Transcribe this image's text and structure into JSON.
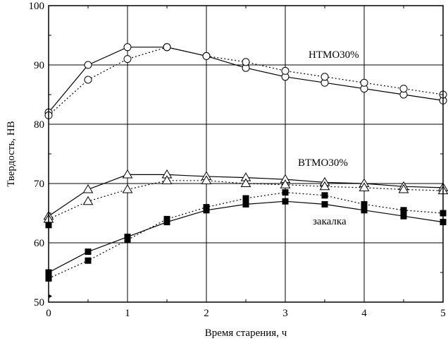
{
  "chart_data": {
    "type": "line",
    "xlabel": "Время старения, ч",
    "ylabel": "Твердость, HB",
    "xlim": [
      0,
      5
    ],
    "ylim": [
      50,
      100
    ],
    "xticks": [
      0,
      1,
      2,
      3,
      4,
      5
    ],
    "yticks": [
      50,
      60,
      70,
      80,
      90,
      100
    ],
    "grid": true,
    "series": [
      {
        "name": "HTMO30%",
        "marker": "circle",
        "line": "solid",
        "x": [
          0,
          0.5,
          1,
          1.5,
          2,
          2.5,
          3,
          3.5,
          4,
          4.5,
          5
        ],
        "y": [
          82,
          90,
          93,
          93,
          91.5,
          89.5,
          88,
          87,
          86,
          85,
          84
        ]
      },
      {
        "name": "HTMO30%",
        "marker": "circle",
        "line": "dotted",
        "x": [
          0,
          0.5,
          1,
          1.5,
          2,
          2.5,
          3,
          3.5,
          4,
          4.5,
          5
        ],
        "y": [
          81.5,
          87.5,
          91,
          93,
          91.5,
          90.5,
          89,
          88,
          87,
          86,
          85
        ]
      },
      {
        "name": "BTMO30%",
        "marker": "triangle",
        "line": "solid",
        "x": [
          0,
          0.5,
          1,
          1.5,
          2,
          2.5,
          3,
          3.5,
          4,
          4.5,
          5
        ],
        "y": [
          64.5,
          69,
          71.5,
          71.5,
          71.2,
          71,
          70.7,
          70.2,
          70,
          69.5,
          69.3
        ]
      },
      {
        "name": "BTMO30%",
        "marker": "triangle",
        "line": "dotted",
        "x": [
          0,
          0.5,
          1,
          1.5,
          2,
          2.5,
          3,
          3.5,
          4,
          4.5,
          5
        ],
        "y": [
          64,
          67,
          69,
          70.5,
          70.5,
          70,
          69.8,
          69.5,
          69.3,
          69,
          68.8
        ]
      },
      {
        "name": "закалка",
        "marker": "square",
        "line": "solid",
        "x": [
          0,
          0.5,
          1,
          1.5,
          2,
          2.5,
          3,
          3.5,
          4,
          4.5,
          5
        ],
        "y": [
          55,
          58.5,
          61,
          63.5,
          65.5,
          66.5,
          67,
          66.5,
          65.5,
          64.5,
          63.5
        ]
      },
      {
        "name": "закалка",
        "marker": "square",
        "line": "dotted",
        "x": [
          0,
          0.5,
          1,
          1.5,
          2,
          2.5,
          3,
          3.5,
          4,
          4.5,
          5
        ],
        "y": [
          54,
          57,
          60.5,
          64,
          66,
          67.5,
          68.5,
          68,
          66.5,
          65.5,
          65
        ]
      }
    ],
    "extra_points": [
      {
        "marker": "square",
        "x": 0,
        "y": 63
      },
      {
        "marker": "diamond",
        "x": 0,
        "y": 51
      }
    ]
  },
  "labels": {
    "htmo": "HTMO30%",
    "btmo": "BTMO30%",
    "quench": "закалка"
  }
}
